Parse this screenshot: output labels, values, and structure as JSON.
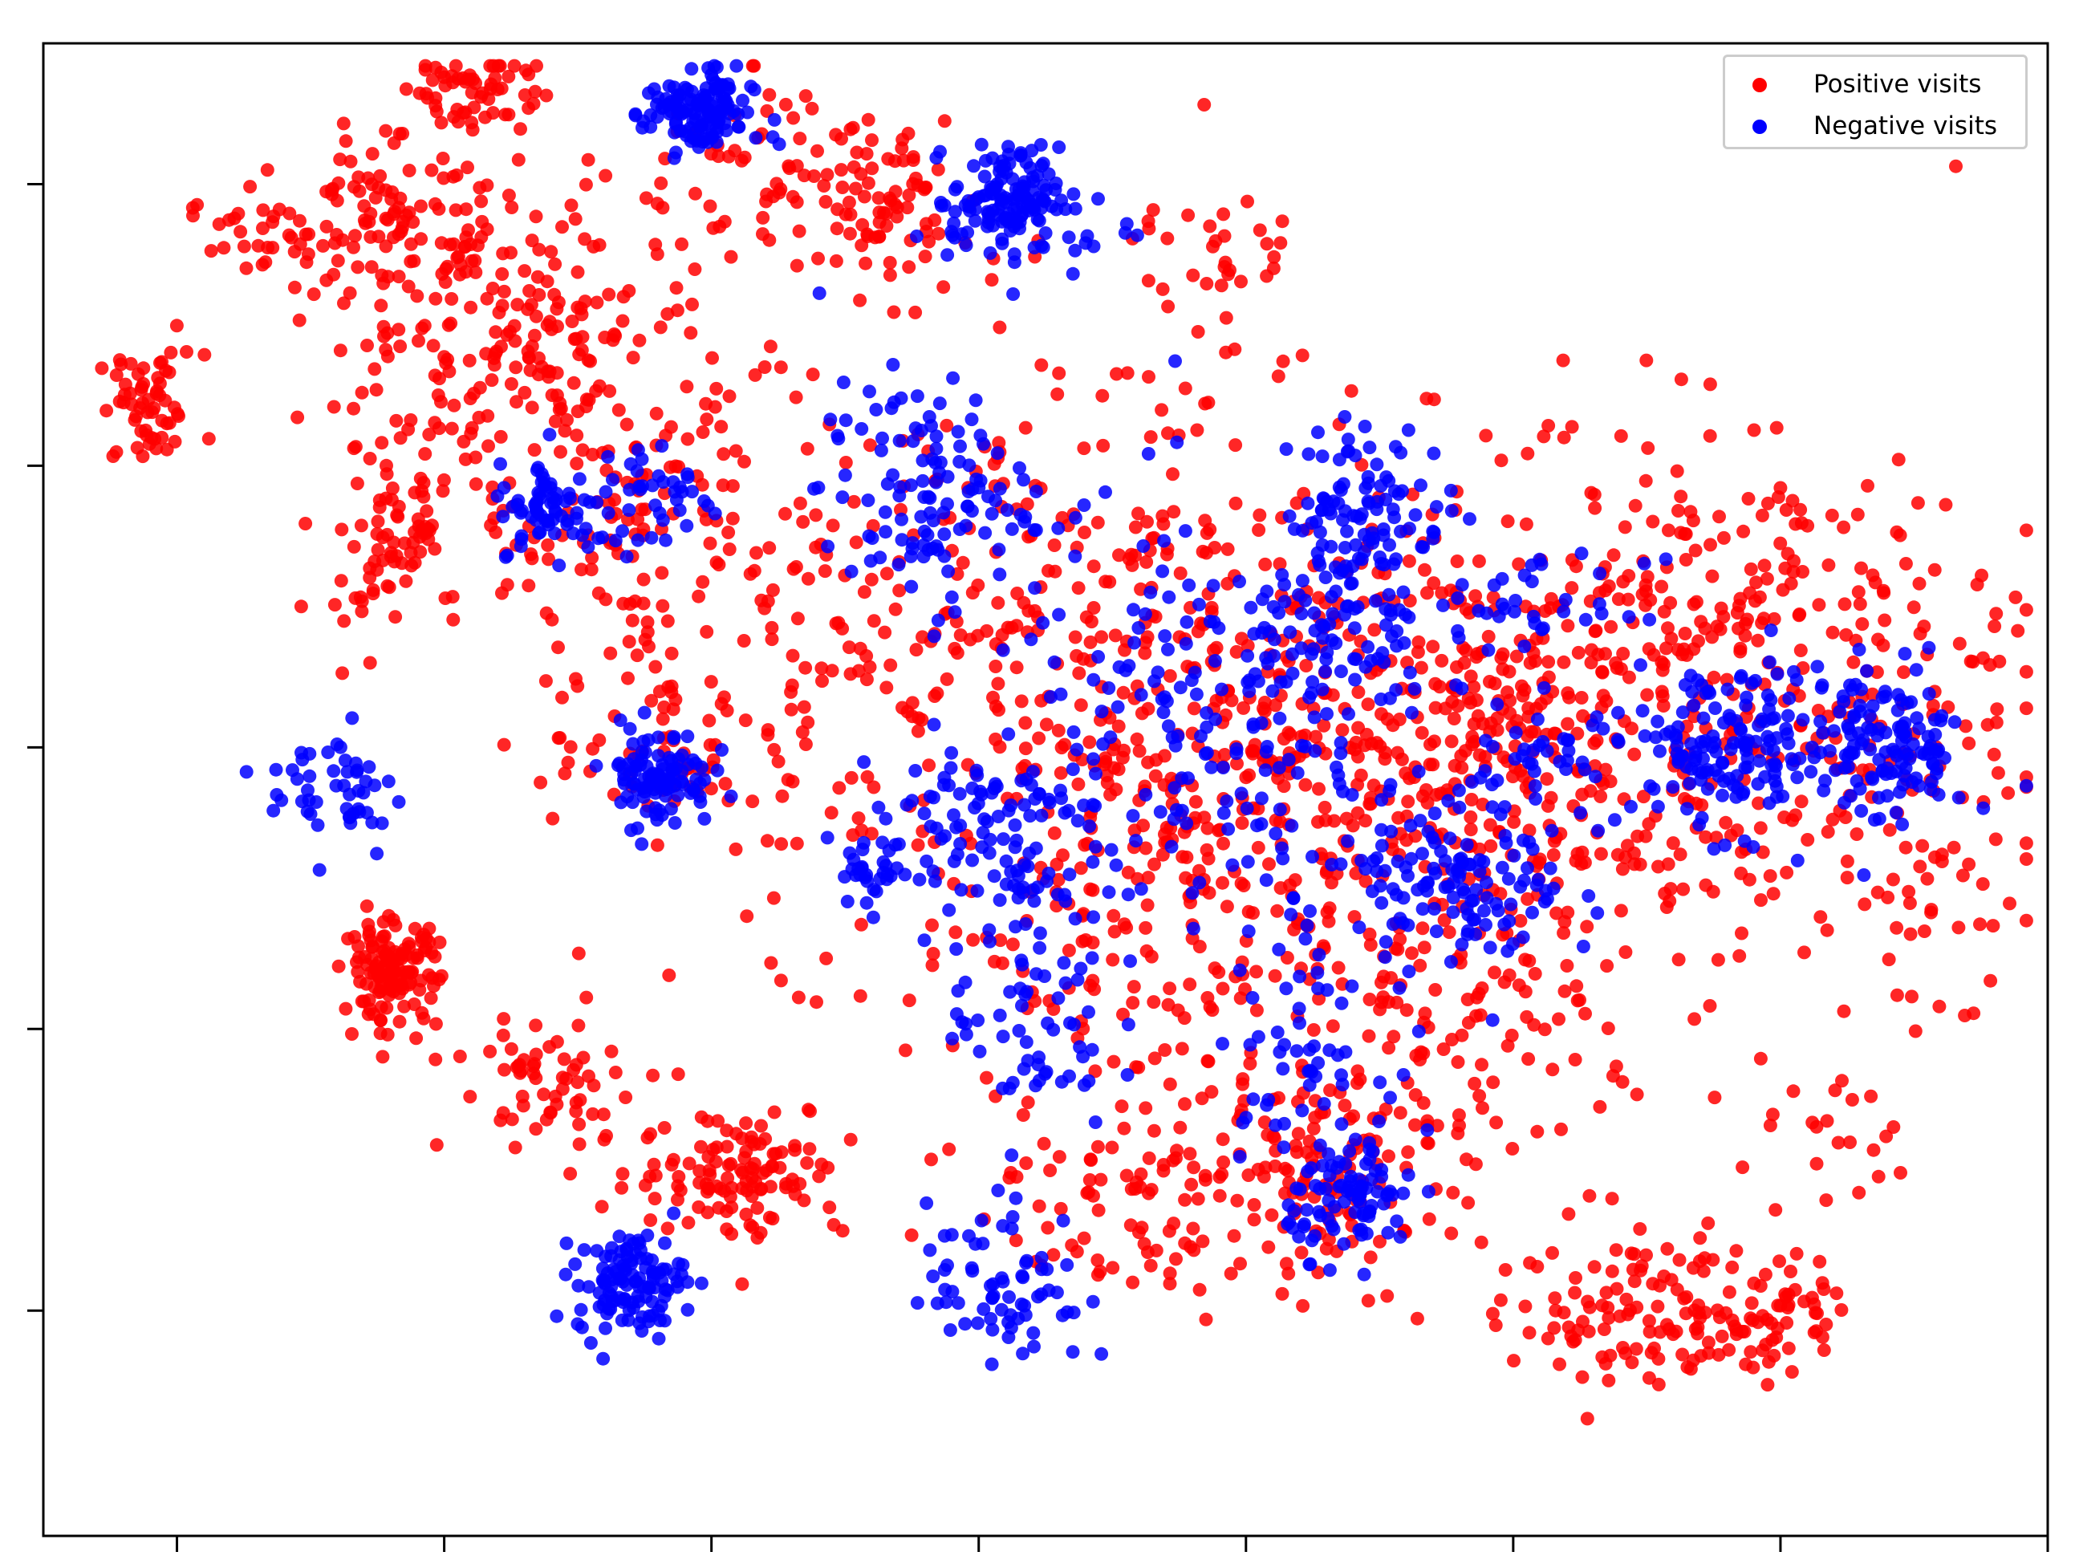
{
  "chart_data": {
    "type": "scatter",
    "title": "",
    "xlabel": "",
    "ylabel": "",
    "xlim": [
      -45,
      30
    ],
    "ylim": [
      -28,
      25
    ],
    "x_ticks": [
      -40,
      -30,
      -20,
      -10,
      0,
      10,
      20,
      30
    ],
    "y_ticks": [
      -20,
      -10,
      0,
      10,
      20
    ],
    "tick_labels_visible": false,
    "grid": false,
    "legend_position": "top-right",
    "series": [
      {
        "name": "Positive visits",
        "color": "#ff0000",
        "clusters": [
          {
            "x": -41,
            "y": 12,
            "sx": 1.0,
            "sy": 1.0,
            "n": 60
          },
          {
            "x": -37,
            "y": 18,
            "sx": 1.3,
            "sy": 0.9,
            "n": 30
          },
          {
            "x": -32,
            "y": 19,
            "sx": 1.8,
            "sy": 1.6,
            "n": 90
          },
          {
            "x": -29,
            "y": 23.5,
            "sx": 1.2,
            "sy": 0.8,
            "n": 60
          },
          {
            "x": -28,
            "y": 15,
            "sx": 3.0,
            "sy": 2.5,
            "n": 180
          },
          {
            "x": -32,
            "y": 7.5,
            "sx": 1.5,
            "sy": 2.0,
            "n": 90
          },
          {
            "x": -23,
            "y": 8,
            "sx": 2.5,
            "sy": 3.5,
            "n": 140
          },
          {
            "x": -32,
            "y": -8,
            "sx": 0.9,
            "sy": 0.9,
            "n": 130
          },
          {
            "x": -26,
            "y": -12,
            "sx": 1.8,
            "sy": 1.2,
            "n": 60
          },
          {
            "x": -19,
            "y": -15,
            "sx": 2.0,
            "sy": 1.2,
            "n": 120
          },
          {
            "x": -21,
            "y": 0,
            "sx": 2.5,
            "sy": 1.5,
            "n": 60
          },
          {
            "x": -18,
            "y": 20,
            "sx": 2.5,
            "sy": 2.0,
            "n": 60
          },
          {
            "x": -13.5,
            "y": 19.5,
            "sx": 1.2,
            "sy": 1.3,
            "n": 70
          },
          {
            "x": -10,
            "y": 3,
            "sx": 7.0,
            "sy": 6.0,
            "n": 330
          },
          {
            "x": -1,
            "y": -1,
            "sx": 5.5,
            "sy": 5.5,
            "n": 320
          },
          {
            "x": 6,
            "y": -6,
            "sx": 6.0,
            "sy": 5.0,
            "n": 300
          },
          {
            "x": 10,
            "y": 2,
            "sx": 5.0,
            "sy": 4.0,
            "n": 260
          },
          {
            "x": 17,
            "y": 3.5,
            "sx": 5.0,
            "sy": 4.0,
            "n": 220
          },
          {
            "x": 24,
            "y": -1,
            "sx": 3.0,
            "sy": 4.0,
            "n": 130
          },
          {
            "x": 15,
            "y": -20,
            "sx": 2.5,
            "sy": 1.5,
            "n": 110
          },
          {
            "x": 19.5,
            "y": -20,
            "sx": 1.5,
            "sy": 1.2,
            "n": 60
          },
          {
            "x": -3,
            "y": -16,
            "sx": 3.5,
            "sy": 2.0,
            "n": 100
          },
          {
            "x": 3,
            "y": -15,
            "sx": 3.0,
            "sy": 2.0,
            "n": 100
          },
          {
            "x": -1,
            "y": 17.5,
            "sx": 1.5,
            "sy": 1.0,
            "n": 30
          },
          {
            "x": 22.5,
            "y": -14,
            "sx": 1.8,
            "sy": 1.0,
            "n": 20
          }
        ]
      },
      {
        "name": "Negative visits",
        "color": "#0000ff",
        "clusters": [
          {
            "x": -20.5,
            "y": 22.5,
            "sx": 1.0,
            "sy": 0.8,
            "n": 130
          },
          {
            "x": -9,
            "y": 19.5,
            "sx": 1.0,
            "sy": 0.9,
            "n": 120
          },
          {
            "x": -8,
            "y": 18.5,
            "sx": 2.0,
            "sy": 1.0,
            "n": 30
          },
          {
            "x": -34,
            "y": -1.5,
            "sx": 1.3,
            "sy": 1.2,
            "n": 50
          },
          {
            "x": -26,
            "y": 8.5,
            "sx": 1.0,
            "sy": 0.8,
            "n": 70
          },
          {
            "x": -22,
            "y": 9,
            "sx": 1.2,
            "sy": 1.0,
            "n": 40
          },
          {
            "x": -22,
            "y": -1,
            "sx": 1.0,
            "sy": 0.9,
            "n": 100
          },
          {
            "x": -23,
            "y": -19,
            "sx": 1.0,
            "sy": 0.9,
            "n": 120
          },
          {
            "x": -12,
            "y": 9,
            "sx": 2.0,
            "sy": 2.0,
            "n": 120
          },
          {
            "x": -10,
            "y": -3,
            "sx": 2.5,
            "sy": 1.8,
            "n": 120
          },
          {
            "x": -8,
            "y": -10,
            "sx": 1.5,
            "sy": 2.0,
            "n": 60
          },
          {
            "x": -9,
            "y": -19,
            "sx": 1.5,
            "sy": 1.5,
            "n": 70
          },
          {
            "x": -14,
            "y": -4.5,
            "sx": 0.6,
            "sy": 0.5,
            "n": 25
          },
          {
            "x": 4.5,
            "y": 8.5,
            "sx": 1.5,
            "sy": 1.5,
            "n": 100
          },
          {
            "x": 3,
            "y": 4,
            "sx": 2.0,
            "sy": 1.5,
            "n": 70
          },
          {
            "x": 8,
            "y": -5,
            "sx": 2.0,
            "sy": 1.5,
            "n": 120
          },
          {
            "x": 4,
            "y": -16,
            "sx": 1.2,
            "sy": 1.0,
            "n": 90
          },
          {
            "x": -1,
            "y": 0.5,
            "sx": 4.0,
            "sy": 4.0,
            "n": 180
          },
          {
            "x": 2,
            "y": -11,
            "sx": 1.5,
            "sy": 1.5,
            "n": 50
          },
          {
            "x": 11,
            "y": 5,
            "sx": 2.0,
            "sy": 0.8,
            "n": 35
          },
          {
            "x": 18,
            "y": 0,
            "sx": 2.0,
            "sy": 1.5,
            "n": 150
          },
          {
            "x": 24,
            "y": 0,
            "sx": 1.5,
            "sy": 1.5,
            "n": 130
          },
          {
            "x": 11,
            "y": -0.5,
            "sx": 1.5,
            "sy": 1.0,
            "n": 40
          }
        ]
      }
    ]
  }
}
